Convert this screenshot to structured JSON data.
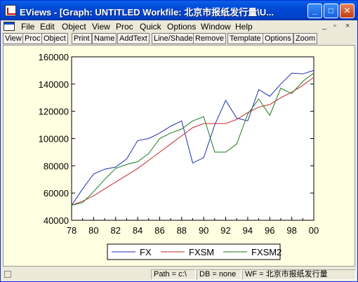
{
  "window": {
    "title": "EViews - [Graph: UNTITLED   Workfile: 北京市报纸发行量\\U...",
    "minimize": "_",
    "maximize": "□",
    "close": "✕",
    "mdi_min": "_",
    "mdi_max": "▫",
    "mdi_close": "×"
  },
  "menu": [
    "File",
    "Edit",
    "Object",
    "View",
    "Proc",
    "Quick",
    "Options",
    "Window",
    "Help"
  ],
  "toolbar": [
    "View",
    "Proc",
    "Object",
    "Print",
    "Name",
    "AddText",
    "Line/Shade",
    "Remove",
    "Template",
    "Options",
    "Zoom"
  ],
  "status": {
    "path": "Path = c:\\",
    "db": "DB = none",
    "wf": "WF = 北京市报纸发行量"
  },
  "chart_data": {
    "type": "line",
    "x": [
      "78",
      "79",
      "80",
      "81",
      "82",
      "83",
      "84",
      "85",
      "86",
      "87",
      "88",
      "89",
      "90",
      "91",
      "92",
      "93",
      "94",
      "95",
      "96",
      "97",
      "98",
      "99",
      "00"
    ],
    "x_ticks": [
      "78",
      "80",
      "82",
      "84",
      "86",
      "88",
      "90",
      "92",
      "94",
      "96",
      "98",
      "00"
    ],
    "y_ticks": [
      "40000",
      "60000",
      "80000",
      "100000",
      "120000",
      "140000",
      "160000"
    ],
    "ylim": [
      40000,
      160000
    ],
    "legend_position": "bottom",
    "series": [
      {
        "name": "FX",
        "color": "#1F2FB0",
        "values": [
          51000,
          63000,
          74000,
          77500,
          79000,
          85000,
          98500,
          100000,
          104000,
          109000,
          113000,
          82000,
          86000,
          110000,
          128000,
          115000,
          113000,
          136000,
          131000,
          140000,
          148000,
          147500,
          150000
        ]
      },
      {
        "name": "FXSM",
        "color": "#C0282A",
        "values": [
          51000,
          54000,
          58000,
          63000,
          68000,
          73000,
          78000,
          84000,
          90000,
          96000,
          102000,
          108000,
          111000,
          111000,
          111000,
          114000,
          119000,
          123000,
          125000,
          130000,
          134000,
          139000,
          145000
        ]
      },
      {
        "name": "FXSM2",
        "color": "#1C7A1C",
        "values": [
          51000,
          53000,
          61000,
          70000,
          78000,
          81000,
          83000,
          89000,
          100000,
          104000,
          107000,
          113000,
          116000,
          90000,
          90000,
          96000,
          118000,
          129000,
          117000,
          137000,
          133000,
          142000,
          148000
        ]
      }
    ]
  }
}
